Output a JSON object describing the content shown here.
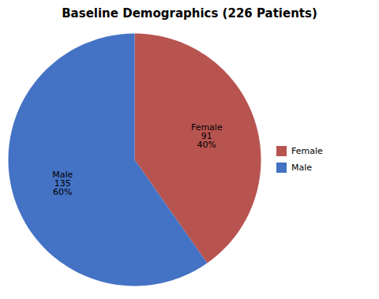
{
  "chart_data": {
    "type": "pie",
    "title": "Baseline Demographics (226 Patients)",
    "categories": [
      "Female",
      "Male"
    ],
    "values": [
      91,
      135
    ],
    "percentages": [
      40,
      60
    ],
    "percentage_labels": [
      "40%",
      "60%"
    ],
    "colors": [
      "#B85450",
      "#4472C4"
    ],
    "data_labels": true,
    "legend": "right"
  }
}
